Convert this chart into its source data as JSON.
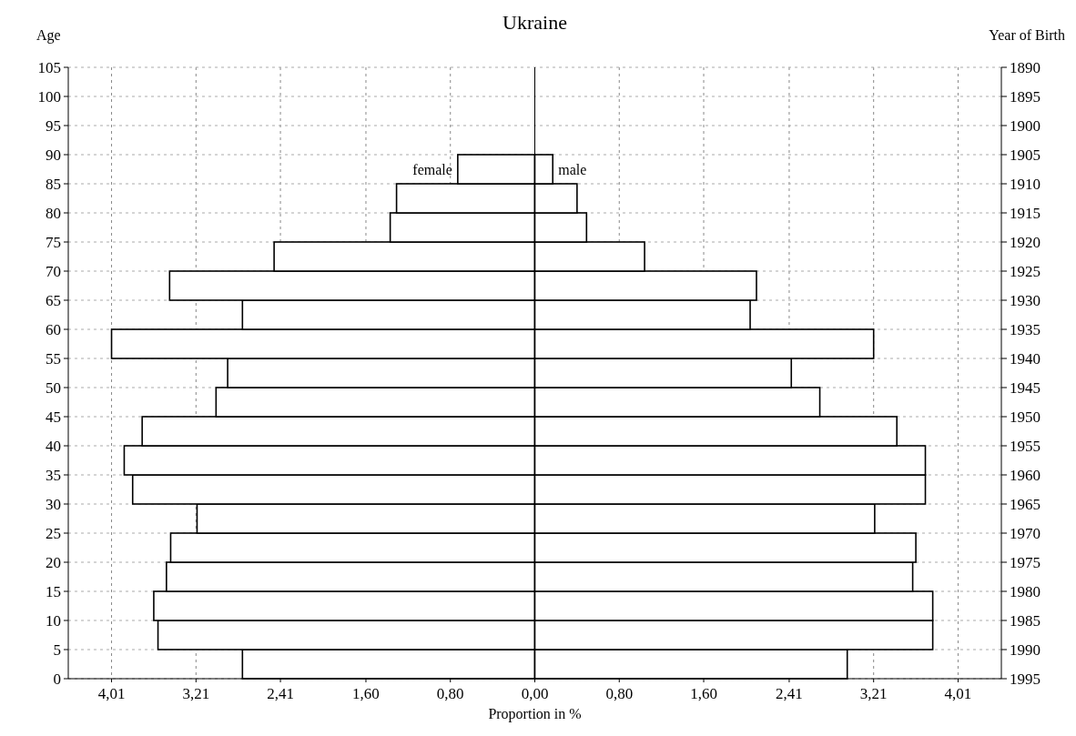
{
  "chart_data": {
    "type": "bar",
    "orientation": "horizontal",
    "stacked": true,
    "title": "Ukraine",
    "xlabel": "Proportion in %",
    "ylabel": "Age",
    "y2label": "Year of Birth",
    "x": [
      2.5,
      7.5,
      12.5,
      17.5,
      22.5,
      27.5,
      32.5,
      37.5,
      42.5,
      47.5,
      52.5,
      57.5,
      62.5,
      67.5,
      72.5,
      77.5,
      82.5,
      87.5
    ],
    "series": [
      {
        "name": "female",
        "color": "#ffffff",
        "values": [
          -2.77,
          -3.57,
          -3.61,
          -3.49,
          -3.45,
          -3.2,
          -3.81,
          -3.89,
          -3.72,
          -3.02,
          -2.91,
          -4.01,
          -2.77,
          -3.46,
          -2.47,
          -1.37,
          -1.31,
          -0.73
        ]
      },
      {
        "name": "male",
        "color": "#ffffff",
        "values": [
          2.96,
          3.77,
          3.77,
          3.58,
          3.61,
          3.22,
          3.7,
          3.7,
          3.43,
          2.7,
          2.43,
          3.21,
          2.04,
          2.1,
          1.04,
          0.49,
          0.4,
          0.17
        ]
      }
    ],
    "xlim": [
      -4.42,
      4.42
    ],
    "xticks": [
      {
        "value": -4.01,
        "label": "4,01"
      },
      {
        "value": -3.21,
        "label": "3,21"
      },
      {
        "value": -2.41,
        "label": "2,41"
      },
      {
        "value": -1.6,
        "label": "1,60"
      },
      {
        "value": -0.8,
        "label": "0,80"
      },
      {
        "value": 0,
        "label": "0,00"
      },
      {
        "value": 0.8,
        "label": "0,80"
      },
      {
        "value": 1.6,
        "label": "1,60"
      },
      {
        "value": 2.41,
        "label": "2,41"
      },
      {
        "value": 3.21,
        "label": "3,21"
      },
      {
        "value": 4.01,
        "label": "4,01"
      }
    ],
    "ylim": [
      0,
      105
    ],
    "yticks": [
      0,
      5,
      10,
      15,
      20,
      25,
      30,
      35,
      40,
      45,
      50,
      55,
      60,
      65,
      70,
      75,
      80,
      85,
      90,
      95,
      100,
      105
    ],
    "y2lim": [
      1995,
      1890
    ],
    "y2ticks": [
      1995,
      1990,
      1985,
      1980,
      1975,
      1970,
      1965,
      1960,
      1955,
      1950,
      1945,
      1940,
      1935,
      1930,
      1925,
      1920,
      1915,
      1910,
      1905,
      1900,
      1895,
      1890
    ],
    "grid": true,
    "legend": false
  }
}
